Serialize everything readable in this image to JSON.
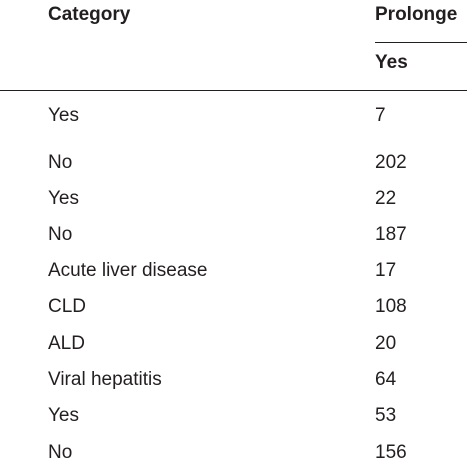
{
  "table": {
    "header": [
      "Category",
      "Prolonge"
    ],
    "subheader": [
      "Yes"
    ],
    "rows": [
      [
        "Yes",
        "7"
      ],
      [
        "No",
        "202"
      ],
      [
        "Yes",
        "22"
      ],
      [
        "No",
        "187"
      ],
      [
        "Acute liver disease",
        "17"
      ],
      [
        "CLD",
        "108"
      ],
      [
        "ALD",
        "20"
      ],
      [
        "Viral hepatitis",
        "64"
      ],
      [
        "Yes",
        "53"
      ],
      [
        "No",
        "156"
      ]
    ]
  }
}
